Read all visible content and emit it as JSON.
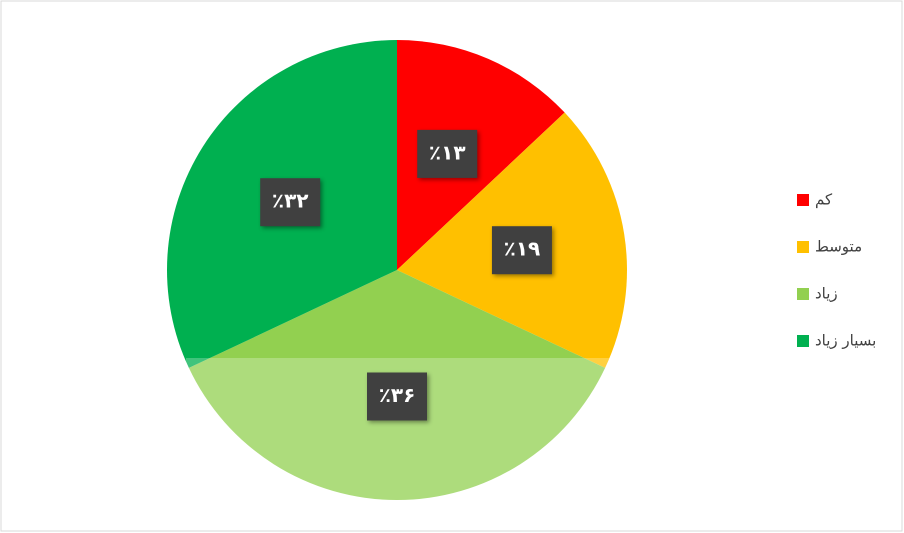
{
  "chart_data": {
    "type": "pie",
    "categories": [
      "کم",
      "متوسط",
      "زیاد",
      "بسیار زیاد"
    ],
    "values": [
      13,
      19,
      36,
      32
    ],
    "value_labels": [
      "٪۱۳",
      "٪۱۹",
      "٪۳۶",
      "٪۳۲"
    ],
    "colors": [
      "#ff0000",
      "#ffc000",
      "#92d050",
      "#00b050"
    ],
    "legend": "right"
  }
}
